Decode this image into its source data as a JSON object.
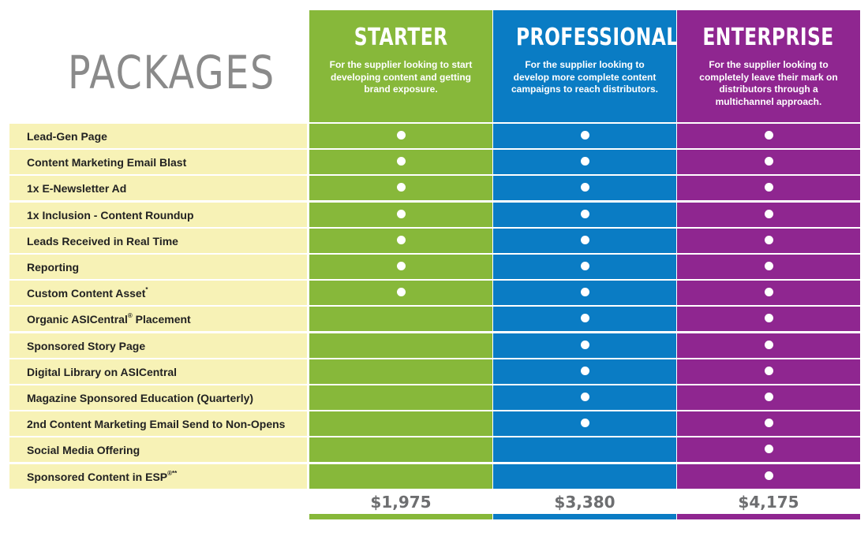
{
  "title": "PACKAGES",
  "colors": {
    "starter": "#87b83a",
    "professional": "#0a7cc4",
    "enterprise": "#8f2690",
    "feature_bg": "#f7f2b6"
  },
  "packages": [
    {
      "key": "starter",
      "name": "STARTER",
      "description": "For the supplier looking to start developing content and getting brand exposure.",
      "price": "$1,975"
    },
    {
      "key": "professional",
      "name": "PROFESSIONAL",
      "description": "For the supplier looking to develop more complete content campaigns to reach distributors.",
      "price": "$3,380"
    },
    {
      "key": "enterprise",
      "name": "ENTERPRISE",
      "description": "For the supplier looking to completely leave their mark on distributors through a multichannel approach.",
      "price": "$4,175"
    }
  ],
  "features": [
    {
      "label": "Lead-Gen Page",
      "sup": "",
      "suffix": "",
      "included": [
        true,
        true,
        true
      ]
    },
    {
      "label": "Content Marketing Email Blast",
      "sup": "",
      "suffix": "",
      "included": [
        true,
        true,
        true
      ]
    },
    {
      "label": "1x E-Newsletter Ad",
      "sup": "",
      "suffix": "",
      "included": [
        true,
        true,
        true
      ]
    },
    {
      "label": "1x Inclusion - Content Roundup",
      "sup": "",
      "suffix": "",
      "included": [
        true,
        true,
        true
      ]
    },
    {
      "label": "Leads Received in Real Time",
      "sup": "",
      "suffix": "",
      "included": [
        true,
        true,
        true
      ]
    },
    {
      "label": "Reporting",
      "sup": "",
      "suffix": "",
      "included": [
        true,
        true,
        true
      ]
    },
    {
      "label": "Custom Content Asset",
      "sup": "*",
      "suffix": "",
      "included": [
        true,
        true,
        true
      ]
    },
    {
      "label": "Organic ASICentral",
      "sup": "®",
      "suffix": " Placement",
      "included": [
        false,
        true,
        true
      ]
    },
    {
      "label": "Sponsored Story Page",
      "sup": "",
      "suffix": "",
      "included": [
        false,
        true,
        true
      ]
    },
    {
      "label": "Digital Library on ASICentral",
      "sup": "",
      "suffix": "",
      "included": [
        false,
        true,
        true
      ]
    },
    {
      "label": "Magazine Sponsored Education (Quarterly)",
      "sup": "",
      "suffix": "",
      "included": [
        false,
        true,
        true
      ]
    },
    {
      "label": "2nd Content Marketing Email Send to Non-Opens",
      "sup": "",
      "suffix": "",
      "included": [
        false,
        true,
        true
      ]
    },
    {
      "label": "Social Media Offering",
      "sup": "",
      "suffix": "",
      "included": [
        false,
        false,
        true
      ]
    },
    {
      "label": "Sponsored Content in ESP",
      "sup": "®**",
      "suffix": "",
      "included": [
        false,
        false,
        true
      ]
    }
  ]
}
